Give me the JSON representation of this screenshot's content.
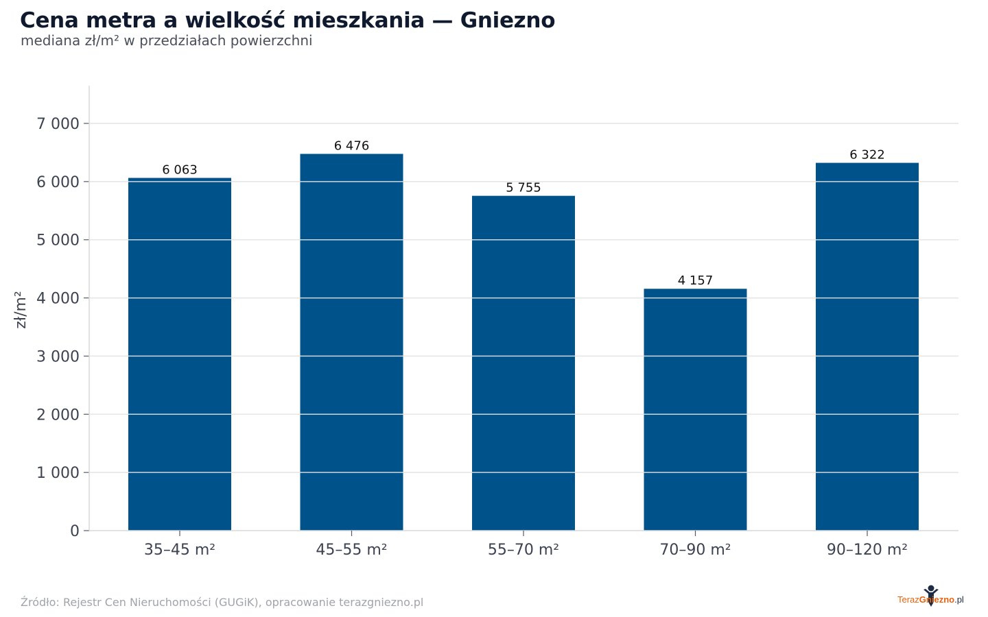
{
  "header": {
    "title": "Cena metra a wielkość mieszkania — Gniezno",
    "subtitle": "mediana zł/m² w przedziałach powierzchni"
  },
  "footer": {
    "source": "Źródło: Rejestr Cen Nieruchomości (GUGiK), opracowanie terazgniezno.pl",
    "logo_part1": "Teraz",
    "logo_part2": "Gniezno",
    "logo_part3": ".pl"
  },
  "colors": {
    "bar": "#00538a",
    "grid": "#e6e6e6",
    "axis": "#d9d9d9",
    "logo_accent": "#e8620c"
  },
  "chart_data": {
    "type": "bar",
    "title": "Cena metra a wielkość mieszkania — Gniezno",
    "subtitle": "mediana zł/m² w przedziałach powierzchni",
    "xlabel": "",
    "ylabel": "zł/m²",
    "categories": [
      "35–45 m²",
      "45–55 m²",
      "55–70 m²",
      "70–90 m²",
      "90–120 m²"
    ],
    "values": [
      6063,
      6476,
      5755,
      4157,
      6322
    ],
    "value_labels": [
      "6 063",
      "6 476",
      "5 755",
      "4 157",
      "6 322"
    ],
    "ylim": [
      0,
      7650
    ],
    "yticks": [
      0,
      1000,
      2000,
      3000,
      4000,
      5000,
      6000,
      7000
    ],
    "ytick_labels": [
      "0",
      "1 000",
      "2 000",
      "3 000",
      "4 000",
      "5 000",
      "6 000",
      "7 000"
    ],
    "grid": true,
    "legend": "none"
  }
}
